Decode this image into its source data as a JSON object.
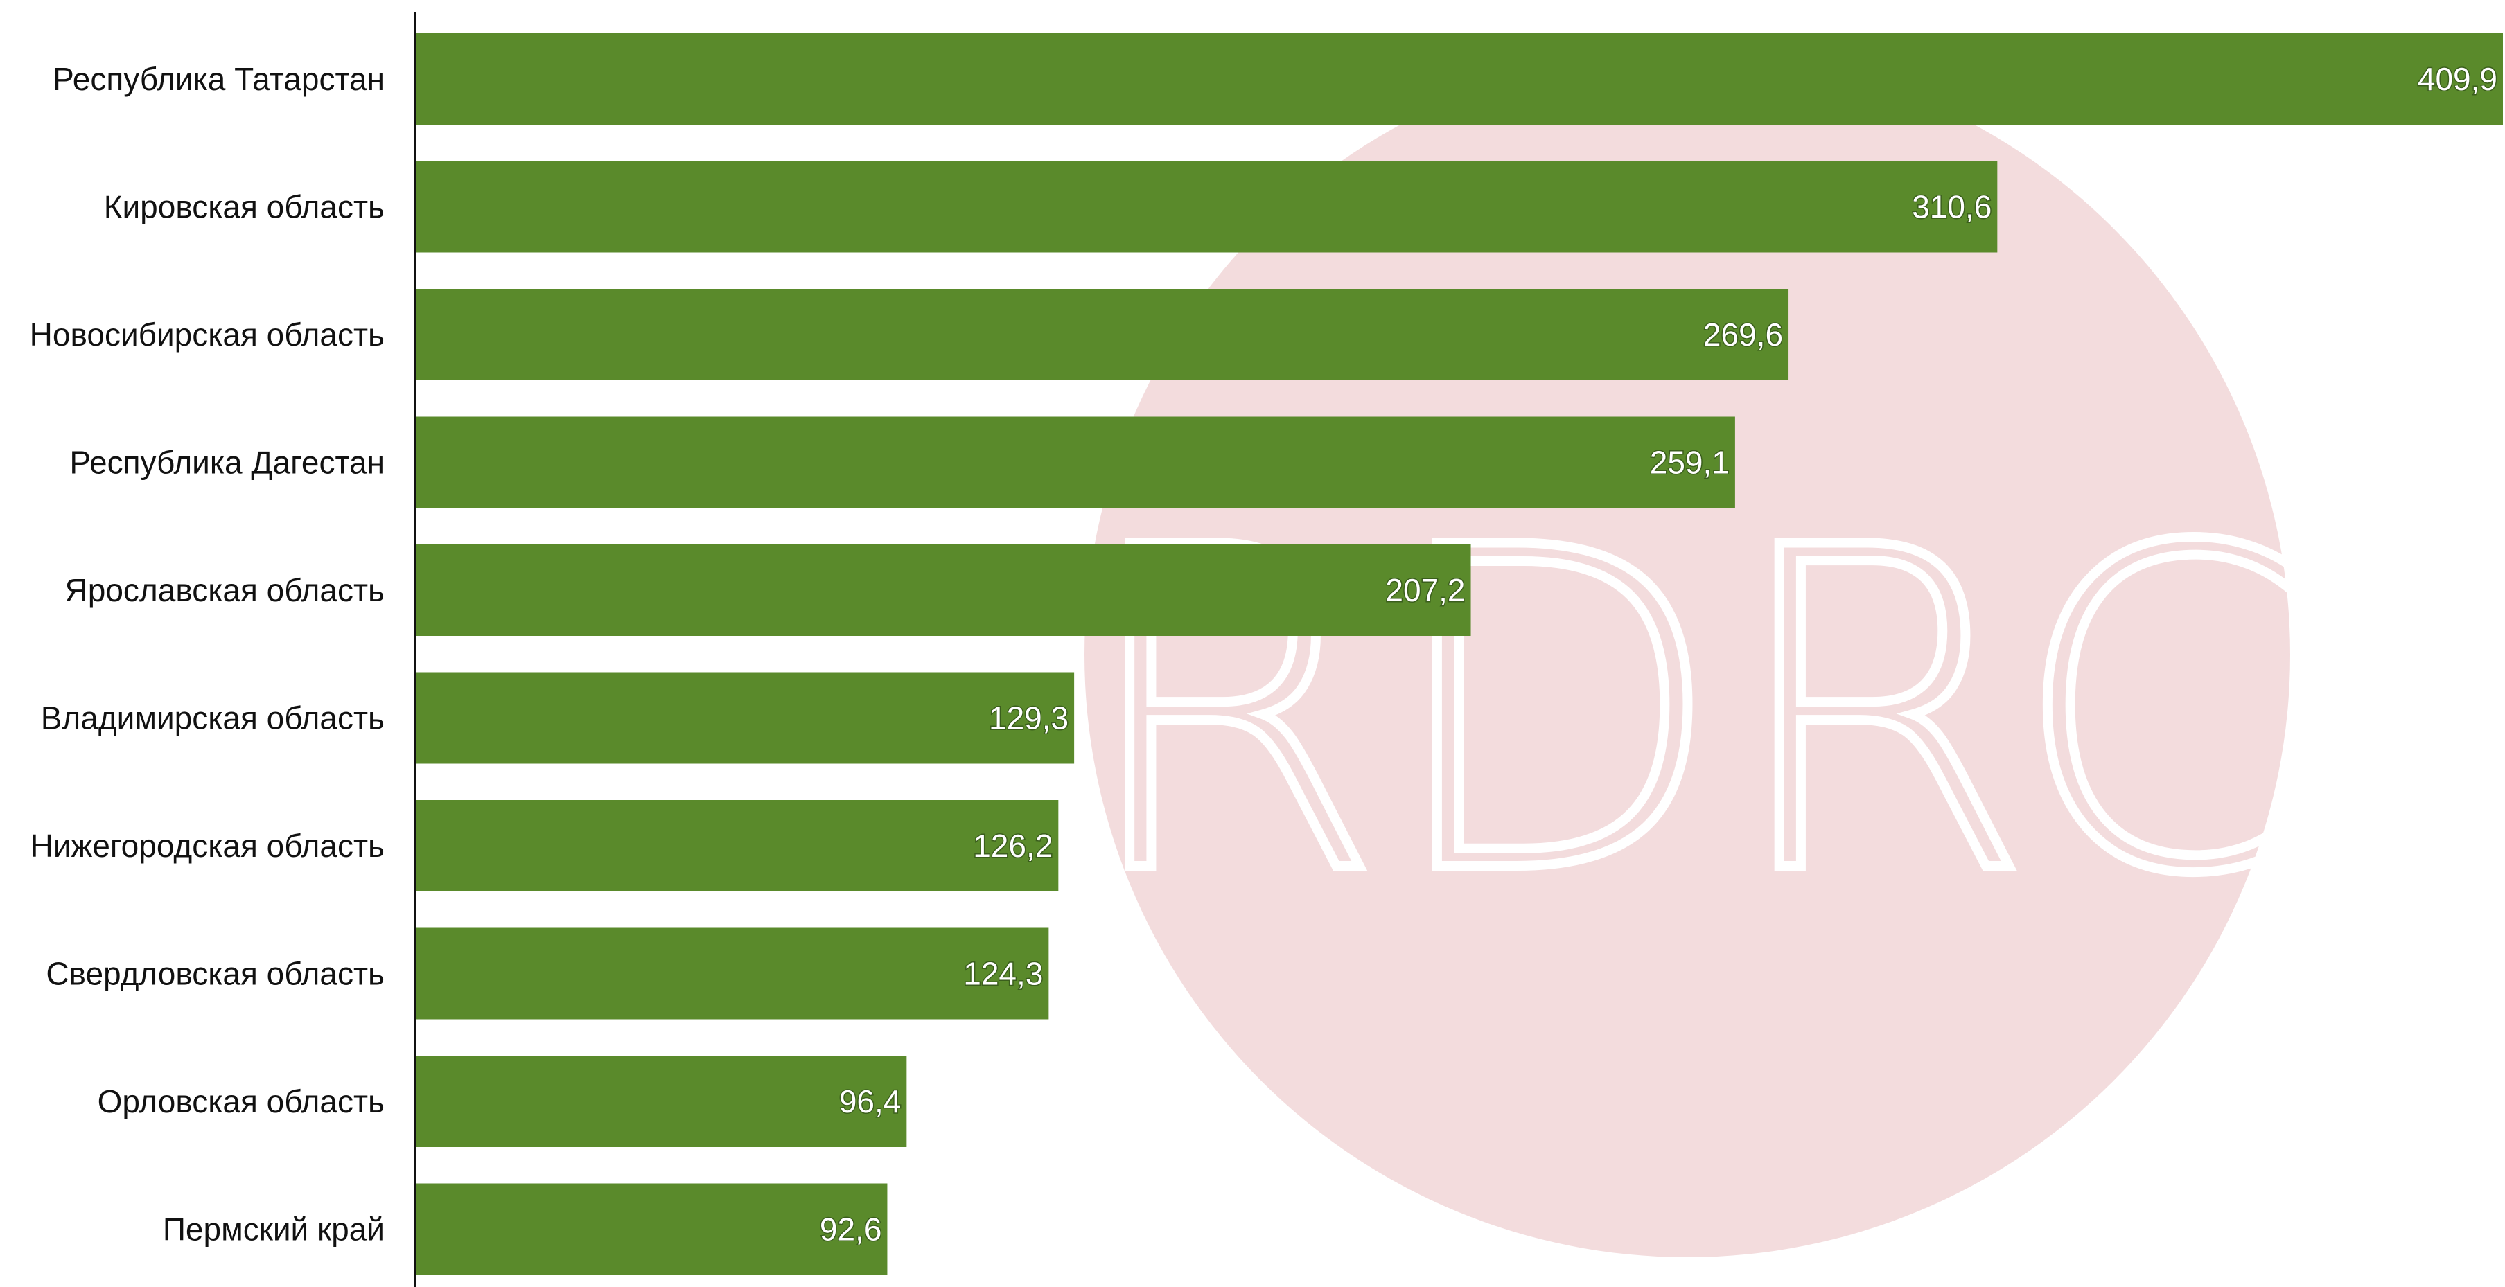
{
  "chart_data": {
    "type": "bar",
    "orientation": "horizontal",
    "categories": [
      "Республика Татарстан",
      "Кировская область",
      "Новосибирская область",
      "Республика Дагестан",
      "Ярославская область",
      "Владимирская область",
      "Нижегородская область",
      "Свердловская область",
      "Орловская область",
      "Пермский край"
    ],
    "values": [
      409.9,
      310.6,
      269.6,
      259.1,
      207.2,
      129.3,
      126.2,
      124.3,
      96.4,
      92.6
    ],
    "value_labels": [
      "409,9",
      "310,6",
      "269,6",
      "259,1",
      "207,2",
      "129,3",
      "126,2",
      "124,3",
      "96,4",
      "92,6"
    ],
    "xlim": [
      0,
      409.9
    ],
    "grid": false,
    "legend": "none",
    "bar_color": "#5a8a2b",
    "value_label_color": "#ffffff"
  },
  "watermark": {
    "text": "RDRC",
    "circle_color": "#f3dcdd",
    "text_color": "#ffffff"
  }
}
